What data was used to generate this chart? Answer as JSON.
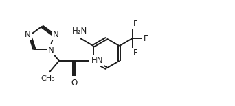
{
  "bg_color": "#ffffff",
  "line_color": "#1a1a1a",
  "lw": 1.4,
  "fs": 8.5,
  "dbo": 0.018,
  "figsize": [
    3.42,
    1.55
  ],
  "dpi": 100,
  "xlim": [
    0,
    3.42
  ],
  "ylim": [
    0,
    1.55
  ]
}
